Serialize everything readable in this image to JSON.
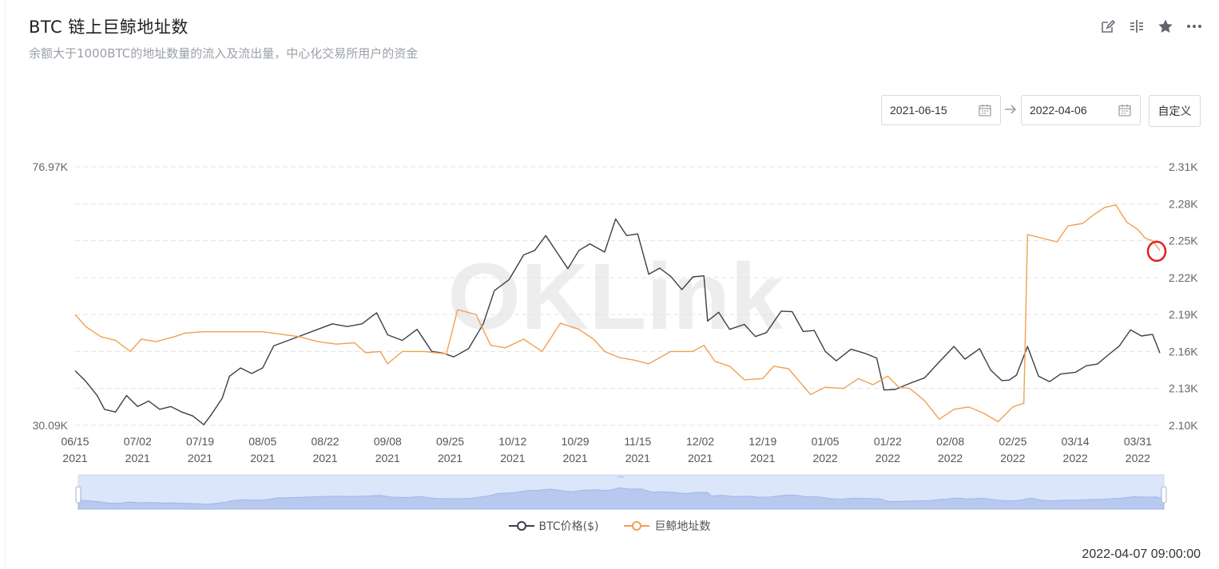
{
  "header": {
    "title": "BTC 链上巨鲸地址数",
    "subtitle": "余额大于1000BTC的地址数量的流入及流出量，中心化交易所用户的资金"
  },
  "toolbar": {
    "icons": [
      "edit-icon",
      "compare-icon",
      "star-icon",
      "more-icon"
    ]
  },
  "date_range": {
    "start": "2021-06-15",
    "end": "2022-04-06",
    "custom_label": "自定义"
  },
  "timestamp": "2022-04-07 09:00:00",
  "watermark": "OKLink",
  "colors": {
    "price": "#3c3f4a",
    "whales": "#f0a052",
    "grid": "#e3e3e3",
    "highlight": "#e02020",
    "navigator_fill": "#dbe6fb"
  },
  "chart_data": {
    "type": "line",
    "title": "",
    "xlabel": "",
    "grid": true,
    "legend_position": "bottom",
    "x_tick_labels": [
      [
        "06/15",
        "2021"
      ],
      [
        "07/02",
        "2021"
      ],
      [
        "07/19",
        "2021"
      ],
      [
        "08/05",
        "2021"
      ],
      [
        "08/22",
        "2021"
      ],
      [
        "09/08",
        "2021"
      ],
      [
        "09/25",
        "2021"
      ],
      [
        "10/12",
        "2021"
      ],
      [
        "10/29",
        "2021"
      ],
      [
        "11/15",
        "2021"
      ],
      [
        "12/02",
        "2021"
      ],
      [
        "12/19",
        "2021"
      ],
      [
        "01/05",
        "2022"
      ],
      [
        "01/22",
        "2022"
      ],
      [
        "02/08",
        "2022"
      ],
      [
        "02/25",
        "2022"
      ],
      [
        "03/14",
        "2022"
      ],
      [
        "03/31",
        "2022"
      ]
    ],
    "x_range": [
      "2021-06-15",
      "2022-04-06"
    ],
    "y_left": {
      "label": "",
      "min": 30090,
      "max": 76970,
      "tick_labels": [
        "76.97K",
        "30.09K"
      ]
    },
    "y_right": {
      "label": "",
      "min": 2100,
      "max": 2310,
      "tick_labels": [
        "2.31K",
        "2.28K",
        "2.25K",
        "2.22K",
        "2.19K",
        "2.16K",
        "2.13K",
        "2.10K"
      ]
    },
    "series": [
      {
        "name": "BTC价格($)",
        "axis": "left",
        "points": [
          [
            "2021-06-15",
            40000
          ],
          [
            "2021-06-18",
            38000
          ],
          [
            "2021-06-21",
            35500
          ],
          [
            "2021-06-23",
            33000
          ],
          [
            "2021-06-26",
            32500
          ],
          [
            "2021-06-29",
            35500
          ],
          [
            "2021-07-02",
            33500
          ],
          [
            "2021-07-05",
            34500
          ],
          [
            "2021-07-08",
            33000
          ],
          [
            "2021-07-11",
            33500
          ],
          [
            "2021-07-14",
            32500
          ],
          [
            "2021-07-17",
            31800
          ],
          [
            "2021-07-20",
            30200
          ],
          [
            "2021-07-22",
            32000
          ],
          [
            "2021-07-25",
            35000
          ],
          [
            "2021-07-27",
            39000
          ],
          [
            "2021-07-30",
            40500
          ],
          [
            "2021-08-02",
            39500
          ],
          [
            "2021-08-05",
            40500
          ],
          [
            "2021-08-08",
            44500
          ],
          [
            "2021-08-12",
            45500
          ],
          [
            "2021-08-16",
            46500
          ],
          [
            "2021-08-20",
            47500
          ],
          [
            "2021-08-24",
            48500
          ],
          [
            "2021-08-28",
            48000
          ],
          [
            "2021-09-01",
            48500
          ],
          [
            "2021-09-05",
            50500
          ],
          [
            "2021-09-08",
            46500
          ],
          [
            "2021-09-12",
            45500
          ],
          [
            "2021-09-16",
            47500
          ],
          [
            "2021-09-20",
            43500
          ],
          [
            "2021-09-23",
            43200
          ],
          [
            "2021-09-26",
            42500
          ],
          [
            "2021-09-30",
            44000
          ],
          [
            "2021-10-04",
            48500
          ],
          [
            "2021-10-07",
            54500
          ],
          [
            "2021-10-11",
            56500
          ],
          [
            "2021-10-15",
            61000
          ],
          [
            "2021-10-18",
            61800
          ],
          [
            "2021-10-21",
            64500
          ],
          [
            "2021-10-24",
            61500
          ],
          [
            "2021-10-27",
            58500
          ],
          [
            "2021-10-30",
            61800
          ],
          [
            "2021-11-02",
            63000
          ],
          [
            "2021-11-06",
            61500
          ],
          [
            "2021-11-09",
            67500
          ],
          [
            "2021-11-12",
            64500
          ],
          [
            "2021-11-15",
            64800
          ],
          [
            "2021-11-18",
            57500
          ],
          [
            "2021-11-21",
            58600
          ],
          [
            "2021-11-24",
            57100
          ],
          [
            "2021-11-27",
            54700
          ],
          [
            "2021-11-30",
            57000
          ],
          [
            "2021-12-03",
            57200
          ],
          [
            "2021-12-04",
            49000
          ],
          [
            "2021-12-07",
            50600
          ],
          [
            "2021-12-10",
            47500
          ],
          [
            "2021-12-14",
            48400
          ],
          [
            "2021-12-17",
            46200
          ],
          [
            "2021-12-20",
            46900
          ],
          [
            "2021-12-24",
            50800
          ],
          [
            "2021-12-27",
            50700
          ],
          [
            "2021-12-30",
            47100
          ],
          [
            "2022-01-02",
            47300
          ],
          [
            "2022-01-05",
            43500
          ],
          [
            "2022-01-08",
            41800
          ],
          [
            "2022-01-12",
            43900
          ],
          [
            "2022-01-16",
            43100
          ],
          [
            "2022-01-19",
            42300
          ],
          [
            "2022-01-21",
            36500
          ],
          [
            "2022-01-24",
            36600
          ],
          [
            "2022-01-28",
            37700
          ],
          [
            "2022-02-01",
            38700
          ],
          [
            "2022-02-05",
            41600
          ],
          [
            "2022-02-09",
            44400
          ],
          [
            "2022-02-12",
            42100
          ],
          [
            "2022-02-16",
            44000
          ],
          [
            "2022-02-19",
            40100
          ],
          [
            "2022-02-22",
            38200
          ],
          [
            "2022-02-24",
            38300
          ],
          [
            "2022-02-26",
            39200
          ],
          [
            "2022-03-01",
            44400
          ],
          [
            "2022-03-04",
            39000
          ],
          [
            "2022-03-07",
            38000
          ],
          [
            "2022-03-10",
            39400
          ],
          [
            "2022-03-14",
            39700
          ],
          [
            "2022-03-17",
            40900
          ],
          [
            "2022-03-20",
            41200
          ],
          [
            "2022-03-23",
            42900
          ],
          [
            "2022-03-26",
            44500
          ],
          [
            "2022-03-29",
            47400
          ],
          [
            "2022-04-01",
            46300
          ],
          [
            "2022-04-04",
            46600
          ],
          [
            "2022-04-06",
            43200
          ]
        ]
      },
      {
        "name": "巨鲸地址数",
        "axis": "right",
        "points": [
          [
            "2021-06-15",
            2190
          ],
          [
            "2021-06-18",
            2180
          ],
          [
            "2021-06-22",
            2172
          ],
          [
            "2021-06-26",
            2169
          ],
          [
            "2021-06-30",
            2160
          ],
          [
            "2021-07-03",
            2170
          ],
          [
            "2021-07-07",
            2168
          ],
          [
            "2021-07-12",
            2172
          ],
          [
            "2021-07-15",
            2175
          ],
          [
            "2021-07-20",
            2176
          ],
          [
            "2021-07-25",
            2176
          ],
          [
            "2021-08-01",
            2176
          ],
          [
            "2021-08-05",
            2176
          ],
          [
            "2021-08-10",
            2174
          ],
          [
            "2021-08-15",
            2172
          ],
          [
            "2021-08-20",
            2168
          ],
          [
            "2021-08-25",
            2166
          ],
          [
            "2021-08-30",
            2167
          ],
          [
            "2021-09-02",
            2159
          ],
          [
            "2021-09-06",
            2160
          ],
          [
            "2021-09-08",
            2150
          ],
          [
            "2021-09-12",
            2160
          ],
          [
            "2021-09-18",
            2160
          ],
          [
            "2021-09-24",
            2158
          ],
          [
            "2021-09-27",
            2194
          ],
          [
            "2021-10-02",
            2190
          ],
          [
            "2021-10-06",
            2165
          ],
          [
            "2021-10-10",
            2163
          ],
          [
            "2021-10-15",
            2170
          ],
          [
            "2021-10-20",
            2160
          ],
          [
            "2021-10-25",
            2183
          ],
          [
            "2021-10-30",
            2178
          ],
          [
            "2021-11-03",
            2170
          ],
          [
            "2021-11-06",
            2160
          ],
          [
            "2021-11-10",
            2155
          ],
          [
            "2021-11-14",
            2153
          ],
          [
            "2021-11-18",
            2150
          ],
          [
            "2021-11-24",
            2160
          ],
          [
            "2021-11-30",
            2160
          ],
          [
            "2021-12-03",
            2165
          ],
          [
            "2021-12-06",
            2152
          ],
          [
            "2021-12-10",
            2148
          ],
          [
            "2021-12-14",
            2137
          ],
          [
            "2021-12-19",
            2138
          ],
          [
            "2021-12-22",
            2148
          ],
          [
            "2021-12-26",
            2146
          ],
          [
            "2022-01-01",
            2125
          ],
          [
            "2022-01-05",
            2131
          ],
          [
            "2022-01-10",
            2130
          ],
          [
            "2022-01-14",
            2138
          ],
          [
            "2022-01-18",
            2133
          ],
          [
            "2022-01-22",
            2140
          ],
          [
            "2022-01-25",
            2131
          ],
          [
            "2022-01-28",
            2130
          ],
          [
            "2022-02-01",
            2120
          ],
          [
            "2022-02-05",
            2105
          ],
          [
            "2022-02-09",
            2113
          ],
          [
            "2022-02-13",
            2115
          ],
          [
            "2022-02-17",
            2110
          ],
          [
            "2022-02-21",
            2103
          ],
          [
            "2022-02-25",
            2115
          ],
          [
            "2022-02-28",
            2118
          ],
          [
            "2022-03-01",
            2255
          ],
          [
            "2022-03-05",
            2252
          ],
          [
            "2022-03-09",
            2249
          ],
          [
            "2022-03-12",
            2262
          ],
          [
            "2022-03-16",
            2264
          ],
          [
            "2022-03-19",
            2271
          ],
          [
            "2022-03-22",
            2277
          ],
          [
            "2022-03-25",
            2279
          ],
          [
            "2022-03-28",
            2265
          ],
          [
            "2022-03-31",
            2259
          ],
          [
            "2022-04-02",
            2252
          ],
          [
            "2022-04-04",
            2250
          ],
          [
            "2022-04-06",
            2242
          ]
        ]
      }
    ],
    "highlight_point": {
      "series": "巨鲸地址数",
      "date": "2022-04-06",
      "value": 2242
    }
  }
}
